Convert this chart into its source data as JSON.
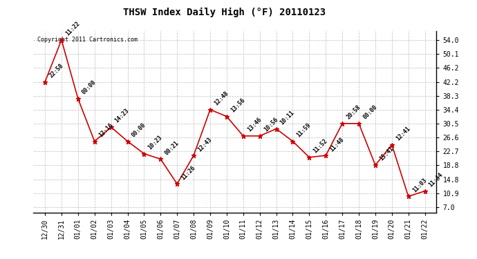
{
  "title": "THSW Index Daily High (°F) 20110123",
  "copyright": "Copyright 2011 Cartronics.com",
  "x_labels": [
    "12/30",
    "12/31",
    "01/01",
    "01/02",
    "01/03",
    "01/04",
    "01/05",
    "01/06",
    "01/07",
    "01/08",
    "01/09",
    "01/10",
    "01/11",
    "01/12",
    "01/13",
    "01/14",
    "01/15",
    "01/16",
    "01/17",
    "01/18",
    "01/19",
    "01/20",
    "01/21",
    "01/22"
  ],
  "y_values": [
    42.2,
    54.0,
    37.5,
    25.5,
    29.5,
    25.5,
    22.0,
    20.5,
    13.5,
    21.5,
    34.4,
    32.5,
    27.0,
    27.0,
    29.0,
    25.5,
    21.0,
    21.5,
    30.5,
    30.5,
    18.8,
    24.5,
    10.0,
    11.5
  ],
  "time_labels": [
    "22:58",
    "11:22",
    "00:00",
    "12:16",
    "14:23",
    "00:00",
    "10:23",
    "00:21",
    "11:26",
    "12:43",
    "12:48",
    "13:56",
    "13:46",
    "10:56",
    "10:11",
    "11:59",
    "11:52",
    "11:48",
    "20:58",
    "00:00",
    "15:41",
    "12:41",
    "11:03",
    "11:44"
  ],
  "y_ticks": [
    7.0,
    10.9,
    14.8,
    18.8,
    22.7,
    26.6,
    30.5,
    34.4,
    38.3,
    42.2,
    46.2,
    50.1,
    54.0
  ],
  "ylim": [
    5.5,
    56.5
  ],
  "line_color": "#cc0000",
  "marker_color": "#cc0000",
  "bg_color": "#ffffff",
  "grid_color": "#bbbbbb",
  "title_fontsize": 10,
  "annotation_fontsize": 6,
  "tick_fontsize": 7,
  "copyright_fontsize": 6
}
